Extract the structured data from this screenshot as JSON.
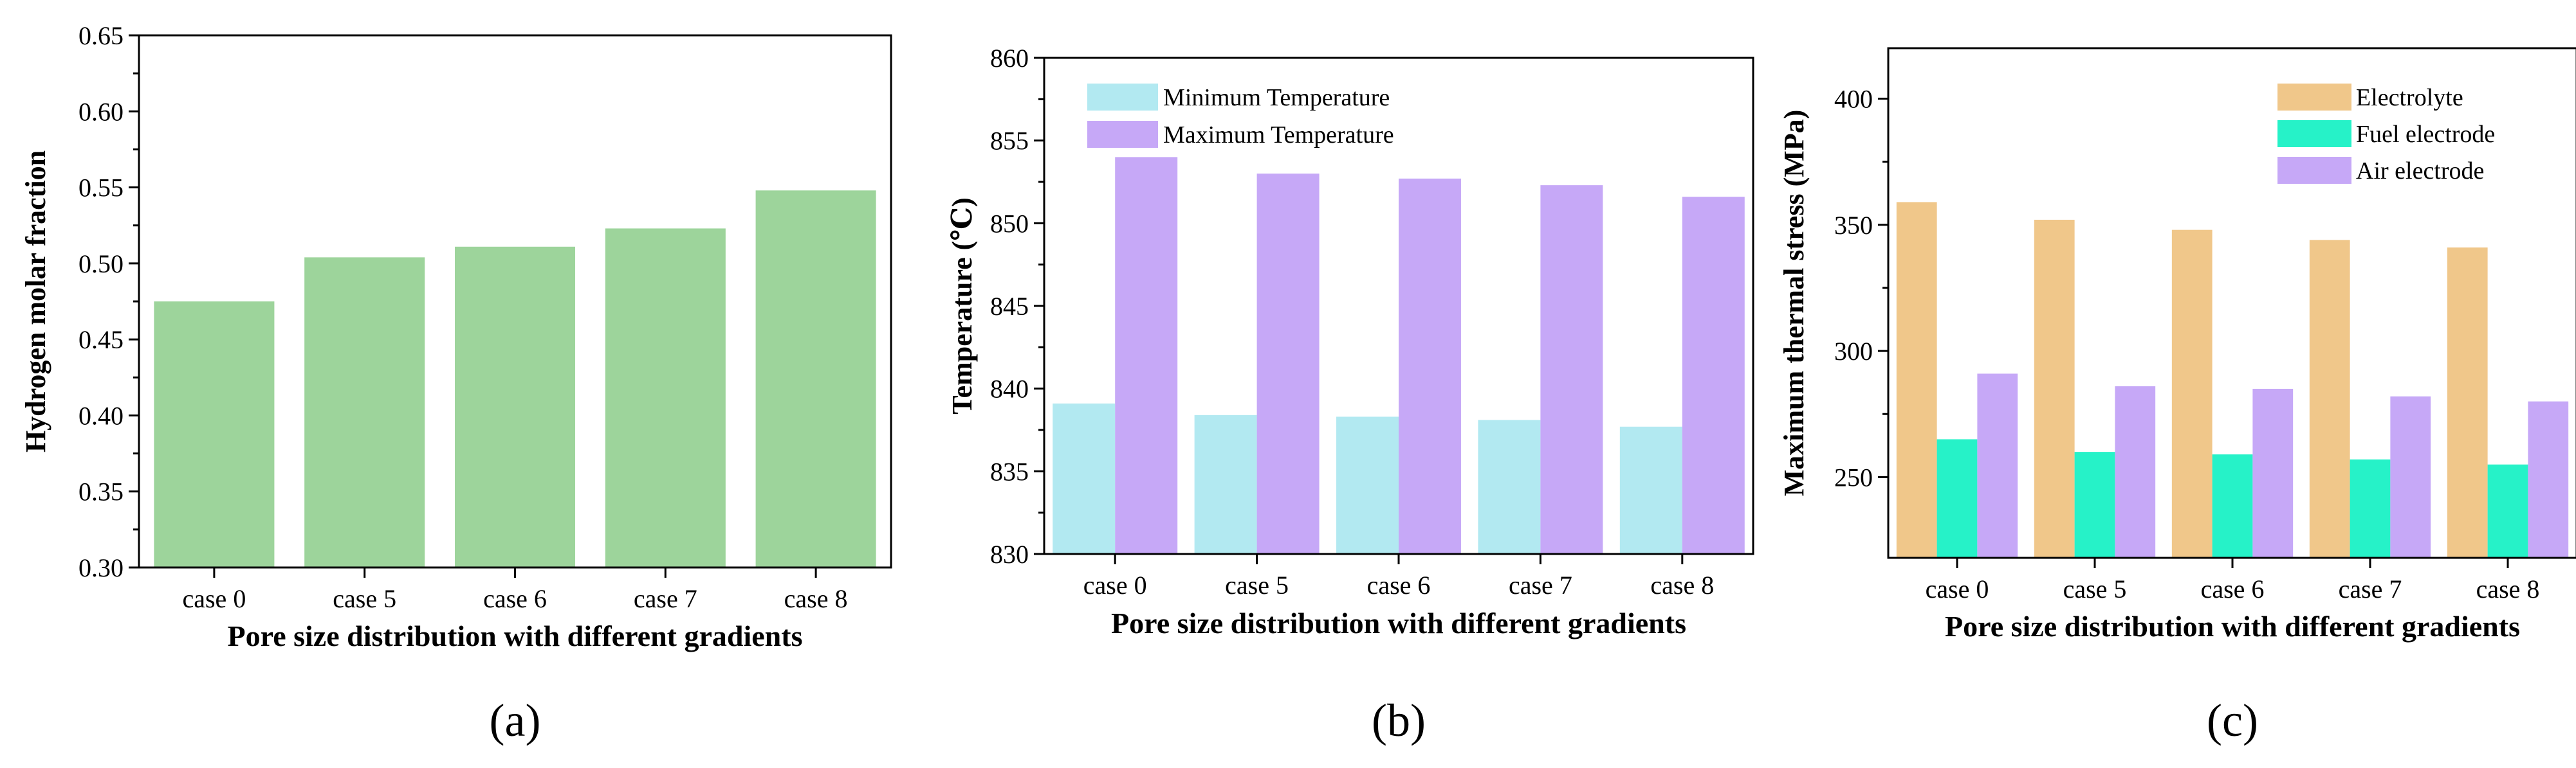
{
  "chart_data": [
    {
      "type": "bar",
      "panel_label": "(a)",
      "title": "",
      "xlabel": "Pore size distribution with different gradients",
      "ylabel": "Hydrogen molar fraction",
      "categories": [
        "case 0",
        "case 5",
        "case 6",
        "case 7",
        "case 8"
      ],
      "series": [
        {
          "name": "",
          "values": [
            0.475,
            0.504,
            0.511,
            0.523,
            0.548
          ]
        }
      ],
      "ylim": [
        0.3,
        0.65
      ],
      "yticks": [
        "0.30",
        "0.35",
        "0.40",
        "0.45",
        "0.50",
        "0.55",
        "0.60",
        "0.65"
      ],
      "ytick_values": [
        0.3,
        0.35,
        0.4,
        0.45,
        0.5,
        0.55,
        0.6,
        0.65
      ],
      "colors": [
        "#9dd49b"
      ],
      "legend": "none",
      "grid": false
    },
    {
      "type": "bar",
      "panel_label": "(b)",
      "title": "",
      "xlabel": "Pore size distribution with different gradients",
      "ylabel": "Temperature  (℃)",
      "categories": [
        "case 0",
        "case 5",
        "case 6",
        "case 7",
        "case 8"
      ],
      "series": [
        {
          "name": "Minimum Temperature",
          "values": [
            839.1,
            838.4,
            838.3,
            838.1,
            837.7
          ]
        },
        {
          "name": "Maximum Temperature",
          "values": [
            854.0,
            853.0,
            852.7,
            852.3,
            851.6
          ]
        }
      ],
      "ylim": [
        830,
        860
      ],
      "yticks": [
        "830",
        "835",
        "840",
        "845",
        "850",
        "855",
        "860"
      ],
      "ytick_values": [
        830,
        835,
        840,
        845,
        850,
        855,
        860
      ],
      "colors": [
        "#b2e9f1",
        "#c6a8f7"
      ],
      "legend": "top-left",
      "grid": false
    },
    {
      "type": "bar",
      "panel_label": "(c)",
      "title": "",
      "xlabel": "Pore size distribution with different gradients",
      "ylabel": "Maximum thermal stress (MPa)",
      "categories": [
        "case 0",
        "case 5",
        "case 6",
        "case 7",
        "case 8"
      ],
      "series": [
        {
          "name": "Electrolyte",
          "values": [
            359,
            352,
            348,
            344,
            341
          ]
        },
        {
          "name": "Fuel electrode",
          "values": [
            265,
            260,
            259,
            257,
            255
          ]
        },
        {
          "name": "Air electrode",
          "values": [
            291,
            286,
            285,
            282,
            280
          ]
        }
      ],
      "ylim": [
        218,
        420
      ],
      "yticks": [
        "250",
        "300",
        "350",
        "400"
      ],
      "ytick_values": [
        250,
        300,
        350,
        400
      ],
      "colors": [
        "#f0c78a",
        "#26f2c8",
        "#c6a8f7"
      ],
      "legend": "top-right",
      "grid": false
    }
  ]
}
